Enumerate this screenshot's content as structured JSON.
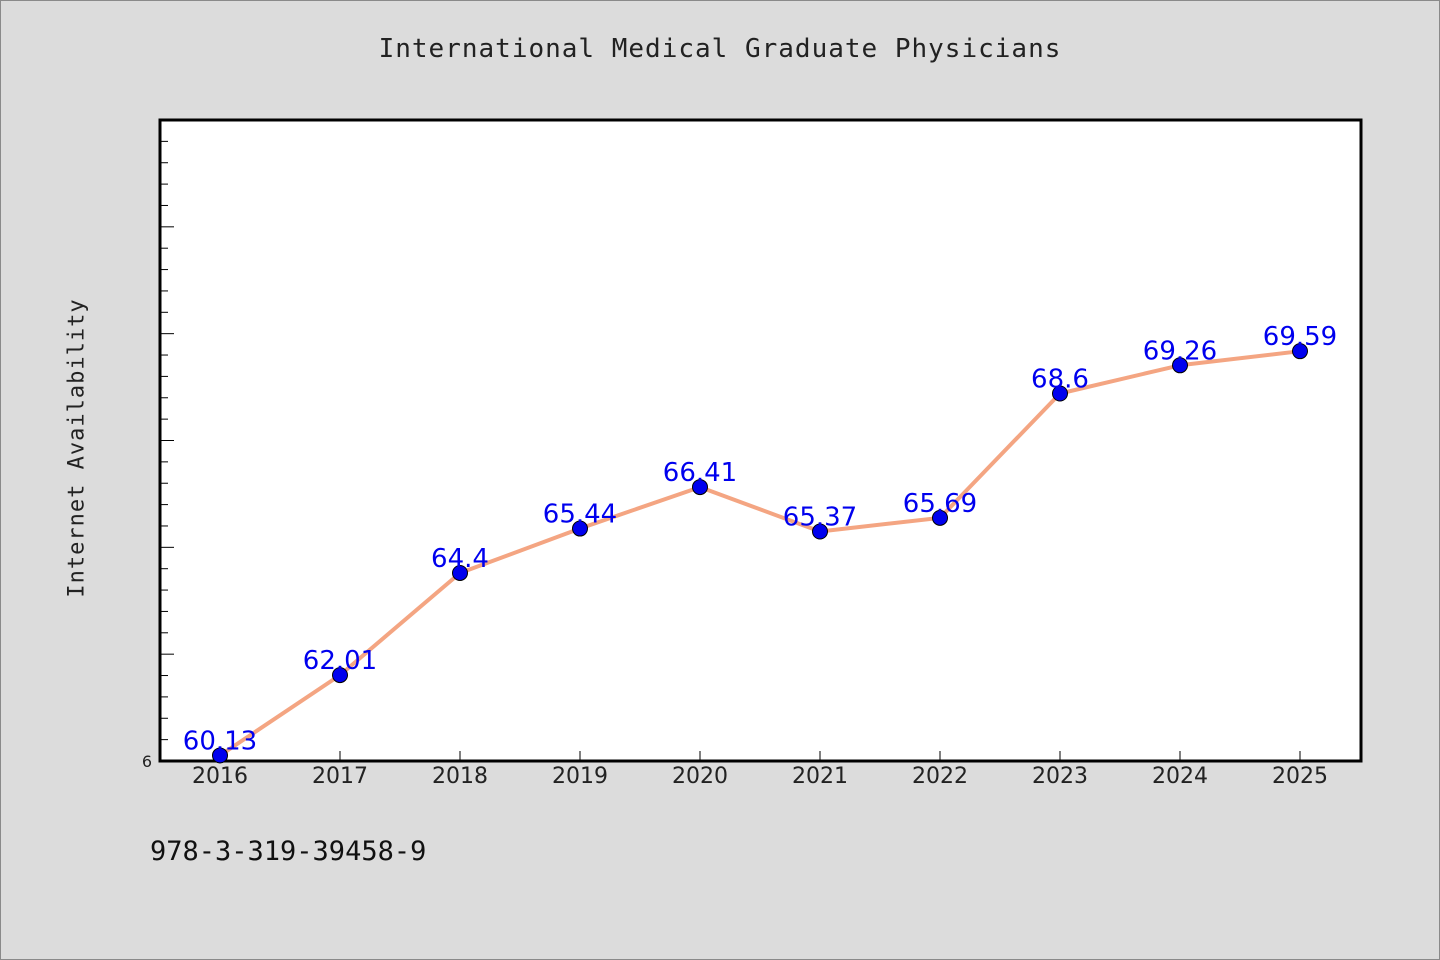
{
  "chart_data": {
    "type": "line",
    "title": "International Medical Graduate Physicians",
    "ylabel": "Internet Availability",
    "xlabel": "",
    "categories": [
      "2016",
      "2017",
      "2018",
      "2019",
      "2020",
      "2021",
      "2022",
      "2023",
      "2024",
      "2025"
    ],
    "series": [
      {
        "values": [
          60.13,
          62.01,
          64.4,
          65.44,
          66.41,
          65.37,
          65.69,
          68.6,
          69.26,
          69.59
        ]
      }
    ],
    "data_labels": [
      "60.13",
      "62.01",
      "64.4",
      "65.44",
      "66.41",
      "65.37",
      "65.69",
      "68.6",
      "69.26",
      "69.59"
    ],
    "ylim": [
      60,
      75
    ],
    "y_tick_label": "6",
    "grid": false,
    "line_color": "#f4a582",
    "marker_color": "#0000ee",
    "label_color": "#0000ee"
  },
  "footer_text": "978-3-319-39458-9"
}
